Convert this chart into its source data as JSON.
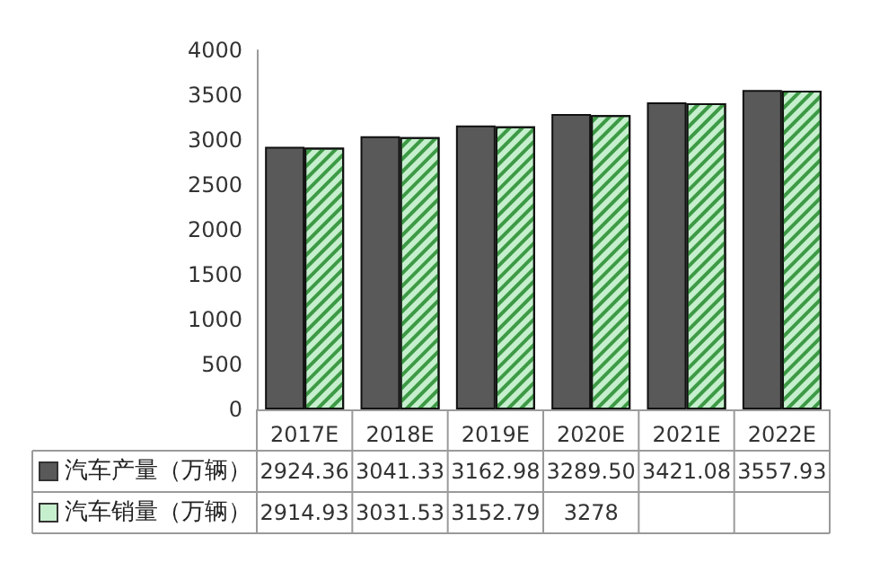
{
  "chart_data": {
    "type": "bar",
    "categories": [
      "2017E",
      "2018E",
      "2019E",
      "2020E",
      "2021E",
      "2022E"
    ],
    "series": [
      {
        "name": "汽车产量（万辆）",
        "color": "#595959",
        "values": [
          2924.36,
          3041.33,
          3162.98,
          3289.5,
          3421.08,
          3557.93
        ],
        "value_labels": [
          "2924.36",
          "3041.33",
          "3162.98",
          "3289.50",
          "3421.08",
          "3557.93"
        ]
      },
      {
        "name": "汽车销量（万辆）",
        "color": "#c6efce",
        "values": [
          2914.93,
          3031.53,
          3152.79,
          3278,
          3410,
          3550
        ],
        "value_labels": [
          "2914.93",
          "3031.53",
          "3152.79",
          "3278",
          null,
          null
        ]
      }
    ],
    "ylim": [
      0,
      4000
    ],
    "yticks": [
      0,
      500,
      1000,
      1500,
      2000,
      2500,
      3000,
      3500,
      4000
    ],
    "grid": false,
    "legend": "bottom"
  }
}
